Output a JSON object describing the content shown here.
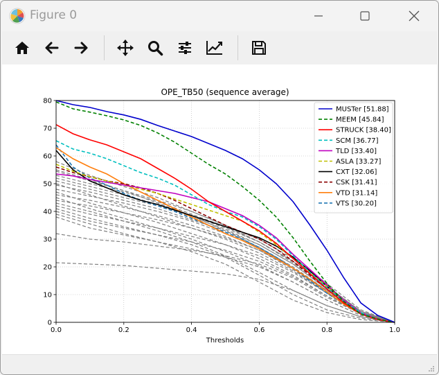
{
  "window": {
    "title": "Figure 0"
  },
  "toolbar": {
    "buttons": [
      {
        "name": "home-button",
        "icon": "home-icon"
      },
      {
        "name": "back-button",
        "icon": "arrow-left-icon"
      },
      {
        "name": "forward-button",
        "icon": "arrow-right-icon"
      },
      {
        "name": "pan-button",
        "icon": "move-icon"
      },
      {
        "name": "zoom-button",
        "icon": "magnifier-icon"
      },
      {
        "name": "configure-subplots-button",
        "icon": "sliders-icon"
      },
      {
        "name": "edit-axis-button",
        "icon": "chart-line-icon"
      },
      {
        "name": "save-button",
        "icon": "floppy-disk-icon"
      }
    ]
  },
  "chart_data": {
    "type": "line",
    "title": "OPE_TB50 (sequence average)",
    "xlabel": "Thresholds",
    "ylabel": "",
    "xlim": [
      0.0,
      1.0
    ],
    "ylim": [
      0,
      80
    ],
    "xticks": [
      "0.0",
      "0.2",
      "0.4",
      "0.6",
      "0.8",
      "1.0"
    ],
    "yticks": [
      "0",
      "10",
      "20",
      "30",
      "40",
      "50",
      "60",
      "70",
      "80"
    ],
    "grid": true,
    "legend_position": "top-right",
    "series": [
      {
        "name": "MUSTer [51.88]",
        "color": "#0000cc",
        "dash": "solid",
        "x": [
          0,
          0.05,
          0.1,
          0.15,
          0.2,
          0.25,
          0.3,
          0.35,
          0.4,
          0.45,
          0.5,
          0.55,
          0.6,
          0.65,
          0.7,
          0.75,
          0.8,
          0.85,
          0.9,
          0.95,
          1.0
        ],
        "y": [
          80,
          78.5,
          77.5,
          76,
          74.8,
          73.2,
          71,
          69,
          67,
          64.5,
          62,
          59,
          55,
          50,
          43.5,
          35,
          26,
          16,
          7,
          2.5,
          0
        ]
      },
      {
        "name": "MEEM [45.84]",
        "color": "#008000",
        "dash": "dashed",
        "x": [
          0,
          0.05,
          0.1,
          0.15,
          0.2,
          0.25,
          0.3,
          0.35,
          0.4,
          0.45,
          0.5,
          0.55,
          0.6,
          0.65,
          0.7,
          0.75,
          0.8,
          0.85,
          0.9,
          0.95,
          1.0
        ],
        "y": [
          79.5,
          77,
          75.8,
          74.5,
          73,
          71,
          68.3,
          65,
          61,
          57,
          53.5,
          49,
          44,
          38,
          30.5,
          22,
          14,
          7.5,
          3,
          1.2,
          0
        ]
      },
      {
        "name": "STRUCK [38.40]",
        "color": "#ff0000",
        "dash": "solid",
        "x": [
          0,
          0.05,
          0.1,
          0.15,
          0.2,
          0.25,
          0.3,
          0.35,
          0.4,
          0.45,
          0.5,
          0.55,
          0.6,
          0.65,
          0.7,
          0.75,
          0.8,
          0.85,
          0.9,
          0.95,
          1.0
        ],
        "y": [
          71.3,
          68,
          65.8,
          64,
          61.5,
          59,
          55.5,
          52,
          48,
          43.5,
          40,
          36.5,
          33,
          28.5,
          23,
          17.5,
          12,
          7,
          3,
          1,
          0
        ]
      },
      {
        "name": "SCM [36.77]",
        "color": "#00bfbf",
        "dash": "dashed",
        "x": [
          0,
          0.05,
          0.1,
          0.15,
          0.2,
          0.25,
          0.3,
          0.35,
          0.4,
          0.45,
          0.5,
          0.55,
          0.6,
          0.65,
          0.7,
          0.75,
          0.8,
          0.85,
          0.9,
          0.95,
          1.0
        ],
        "y": [
          65.5,
          62.5,
          61,
          59,
          56.5,
          54,
          52,
          49.5,
          46,
          42.5,
          40,
          38,
          34.5,
          30,
          24,
          18,
          12.5,
          7.5,
          3.5,
          1,
          0
        ]
      },
      {
        "name": "TLD [33.40]",
        "color": "#bf00bf",
        "dash": "solid",
        "x": [
          0,
          0.05,
          0.1,
          0.15,
          0.2,
          0.25,
          0.3,
          0.35,
          0.4,
          0.45,
          0.5,
          0.55,
          0.6,
          0.65,
          0.7,
          0.75,
          0.8,
          0.85,
          0.9,
          0.95,
          1.0
        ],
        "y": [
          53.5,
          52.8,
          51.5,
          50.5,
          49.5,
          48.5,
          47.5,
          46.5,
          45,
          43.5,
          41,
          38.5,
          35,
          30.5,
          24.5,
          19,
          13.5,
          8,
          3.5,
          1.2,
          0
        ]
      },
      {
        "name": "ASLA [33.27]",
        "color": "#bfbf00",
        "dash": "dashed",
        "x": [
          0,
          0.05,
          0.1,
          0.15,
          0.2,
          0.25,
          0.3,
          0.35,
          0.4,
          0.45,
          0.5,
          0.55,
          0.6,
          0.65,
          0.7,
          0.75,
          0.8,
          0.85,
          0.9,
          0.95,
          1.0
        ],
        "y": [
          57,
          54.5,
          52.5,
          51,
          49.5,
          48,
          46.5,
          44.5,
          42.5,
          40.5,
          38.5,
          36.5,
          32.5,
          28,
          23,
          18,
          13,
          7.5,
          3.5,
          1.2,
          0
        ]
      },
      {
        "name": "CXT [32.06]",
        "color": "#000000",
        "dash": "solid",
        "x": [
          0,
          0.05,
          0.1,
          0.15,
          0.2,
          0.25,
          0.3,
          0.35,
          0.4,
          0.45,
          0.5,
          0.55,
          0.6,
          0.65,
          0.7,
          0.75,
          0.8,
          0.85,
          0.9,
          0.95,
          1.0
        ],
        "y": [
          62,
          55,
          51,
          48.5,
          46,
          44,
          42.5,
          40.5,
          38.5,
          36.5,
          34.5,
          32.5,
          30.5,
          27.5,
          23.5,
          18.5,
          13,
          7.5,
          3.5,
          1,
          0
        ]
      },
      {
        "name": "CSK [31.41]",
        "color": "#8b0000",
        "dash": "dashed",
        "x": [
          0,
          0.05,
          0.1,
          0.15,
          0.2,
          0.25,
          0.3,
          0.35,
          0.4,
          0.45,
          0.5,
          0.55,
          0.6,
          0.65,
          0.7,
          0.75,
          0.8,
          0.85,
          0.9,
          0.95,
          1.0
        ],
        "y": [
          56,
          54,
          52.5,
          51,
          50,
          48.5,
          46.5,
          44,
          41,
          38,
          35,
          32.5,
          30,
          26.5,
          22,
          17,
          12,
          7,
          3,
          1,
          0
        ]
      },
      {
        "name": "VTD [31.14]",
        "color": "#ff7f0e",
        "dash": "solid",
        "x": [
          0,
          0.05,
          0.1,
          0.15,
          0.2,
          0.25,
          0.3,
          0.35,
          0.4,
          0.45,
          0.5,
          0.55,
          0.6,
          0.65,
          0.7,
          0.75,
          0.8,
          0.85,
          0.9,
          0.95,
          1.0
        ],
        "y": [
          63,
          59,
          56,
          53.5,
          50,
          47,
          44,
          41,
          38,
          35,
          32,
          29.5,
          26.5,
          23,
          19.5,
          15.5,
          11,
          6.5,
          3,
          1,
          0
        ]
      },
      {
        "name": "VTS [30.20]",
        "color": "#1f77b4",
        "dash": "dashed",
        "x": [
          0,
          0.05,
          0.1,
          0.15,
          0.2,
          0.25,
          0.3,
          0.35,
          0.4,
          0.45,
          0.5,
          0.55,
          0.6,
          0.65,
          0.7,
          0.75,
          0.8,
          0.85,
          0.9,
          0.95,
          1.0
        ],
        "y": [
          64,
          56,
          52,
          49.5,
          46.5,
          44,
          42,
          40,
          37.5,
          35,
          32.5,
          30,
          27,
          23.5,
          19.5,
          15,
          10.5,
          6.5,
          3,
          1,
          0
        ]
      }
    ],
    "background_series": [
      {
        "x": [
          0,
          0.1,
          0.2,
          0.3,
          0.4,
          0.5,
          0.6,
          0.7,
          0.8,
          0.9,
          1.0
        ],
        "y": [
          21.5,
          21,
          20.5,
          19.5,
          18.5,
          17.5,
          15.5,
          11.5,
          6,
          2,
          0
        ]
      },
      {
        "x": [
          0,
          0.1,
          0.2,
          0.3,
          0.4,
          0.5,
          0.6,
          0.7,
          0.8,
          0.9,
          1.0
        ],
        "y": [
          32,
          30,
          29,
          27.5,
          26,
          24,
          21,
          16,
          9,
          3,
          0
        ]
      },
      {
        "x": [
          0,
          0.1,
          0.2,
          0.3,
          0.4,
          0.5,
          0.6,
          0.7,
          0.8,
          0.9,
          1.0
        ],
        "y": [
          38,
          34,
          31.5,
          29,
          26.5,
          23.5,
          20,
          14.5,
          8,
          2.5,
          0
        ]
      },
      {
        "x": [
          0,
          0.1,
          0.2,
          0.3,
          0.4,
          0.5,
          0.6,
          0.7,
          0.8,
          0.9,
          1.0
        ],
        "y": [
          40,
          36.5,
          34,
          31.5,
          29,
          26,
          22,
          16.5,
          9.5,
          3,
          0
        ]
      },
      {
        "x": [
          0,
          0.1,
          0.2,
          0.3,
          0.4,
          0.5,
          0.6,
          0.7,
          0.8,
          0.9,
          1.0
        ],
        "y": [
          42,
          39,
          36.5,
          34,
          31,
          28,
          24,
          18,
          10.5,
          3.5,
          0
        ]
      },
      {
        "x": [
          0,
          0.1,
          0.2,
          0.3,
          0.4,
          0.5,
          0.6,
          0.7,
          0.8,
          0.9,
          1.0
        ],
        "y": [
          44,
          42,
          39.5,
          37,
          34,
          30.5,
          26,
          19.5,
          11.5,
          3.5,
          0
        ]
      },
      {
        "x": [
          0,
          0.1,
          0.2,
          0.3,
          0.4,
          0.5,
          0.6,
          0.7,
          0.8,
          0.9,
          1.0
        ],
        "y": [
          46,
          44,
          41.5,
          38.5,
          35,
          31,
          26,
          19,
          10.5,
          3,
          0
        ]
      },
      {
        "x": [
          0,
          0.1,
          0.2,
          0.3,
          0.4,
          0.5,
          0.6,
          0.7,
          0.8,
          0.9,
          1.0
        ],
        "y": [
          48,
          45.5,
          43,
          40,
          36.5,
          32,
          27,
          20,
          11.5,
          3.5,
          0
        ]
      },
      {
        "x": [
          0,
          0.1,
          0.2,
          0.3,
          0.4,
          0.5,
          0.6,
          0.7,
          0.8,
          0.9,
          1.0
        ],
        "y": [
          49.5,
          47,
          44,
          41,
          37,
          33,
          28,
          21,
          12,
          4,
          0
        ]
      },
      {
        "x": [
          0,
          0.1,
          0.2,
          0.3,
          0.4,
          0.5,
          0.6,
          0.7,
          0.8,
          0.9,
          1.0
        ],
        "y": [
          51,
          48,
          45,
          42,
          38.5,
          34,
          29,
          22,
          13,
          4,
          0
        ]
      },
      {
        "x": [
          0,
          0.1,
          0.2,
          0.3,
          0.4,
          0.5,
          0.6,
          0.7,
          0.8,
          0.9,
          1.0
        ],
        "y": [
          52,
          49,
          46,
          42.5,
          38,
          33.5,
          28,
          21,
          12,
          3.5,
          0
        ]
      },
      {
        "x": [
          0,
          0.1,
          0.2,
          0.3,
          0.4,
          0.5,
          0.6,
          0.7,
          0.8,
          0.9,
          1.0
        ],
        "y": [
          53,
          50,
          47,
          43.5,
          39,
          34.5,
          29,
          22,
          13,
          4,
          0
        ]
      },
      {
        "x": [
          0,
          0.1,
          0.2,
          0.3,
          0.4,
          0.5,
          0.6,
          0.7,
          0.8,
          0.9,
          1.0
        ],
        "y": [
          54.5,
          51,
          47.5,
          44,
          40,
          35,
          30,
          23,
          14,
          4.5,
          0
        ]
      },
      {
        "x": [
          0,
          0.1,
          0.2,
          0.3,
          0.4,
          0.5,
          0.6,
          0.7,
          0.8,
          0.9,
          1.0
        ],
        "y": [
          50,
          46,
          42,
          38,
          34,
          30,
          25,
          18.5,
          10.5,
          3,
          0
        ]
      },
      {
        "x": [
          0,
          0.1,
          0.2,
          0.3,
          0.4,
          0.5,
          0.6,
          0.7,
          0.8,
          0.9,
          1.0
        ],
        "y": [
          47,
          43,
          39.5,
          36,
          32,
          28,
          23,
          17,
          9.5,
          3,
          0
        ]
      },
      {
        "x": [
          0,
          0.1,
          0.2,
          0.3,
          0.4,
          0.5,
          0.6,
          0.7,
          0.8,
          0.9,
          1.0
        ],
        "y": [
          45,
          41,
          37.5,
          34,
          30,
          25.5,
          20.5,
          14.5,
          8,
          2.5,
          0
        ]
      },
      {
        "x": [
          0,
          0.1,
          0.2,
          0.3,
          0.4,
          0.5,
          0.6,
          0.7,
          0.8,
          0.9,
          1.0
        ],
        "y": [
          43,
          40,
          36.5,
          33,
          29,
          24,
          18,
          11.5,
          6,
          2,
          0
        ]
      },
      {
        "x": [
          0,
          0.1,
          0.2,
          0.3,
          0.4,
          0.5,
          0.6,
          0.7,
          0.8,
          0.9,
          1.0
        ],
        "y": [
          41,
          37.5,
          34.5,
          31.5,
          28,
          23.5,
          17,
          10,
          4.5,
          1.5,
          0
        ]
      },
      {
        "x": [
          0,
          0.1,
          0.2,
          0.3,
          0.4,
          0.5,
          0.6,
          0.7,
          0.8,
          0.9,
          1.0
        ],
        "y": [
          39,
          35.5,
          32,
          29,
          25.5,
          21,
          14.5,
          8,
          3.5,
          1,
          0
        ]
      },
      {
        "x": [
          0,
          0.1,
          0.2,
          0.3,
          0.4,
          0.5,
          0.6,
          0.7,
          0.8,
          0.9,
          1.0
        ],
        "y": [
          55,
          51.5,
          47.5,
          43,
          38.5,
          33,
          27,
          19.5,
          11,
          3.5,
          0
        ]
      },
      {
        "x": [
          0,
          0.1,
          0.2,
          0.3,
          0.4,
          0.5,
          0.6,
          0.7,
          0.8,
          0.9,
          1.0
        ],
        "y": [
          58,
          53,
          49,
          45,
          40,
          35,
          29,
          21.5,
          12.5,
          4,
          0
        ]
      }
    ]
  }
}
